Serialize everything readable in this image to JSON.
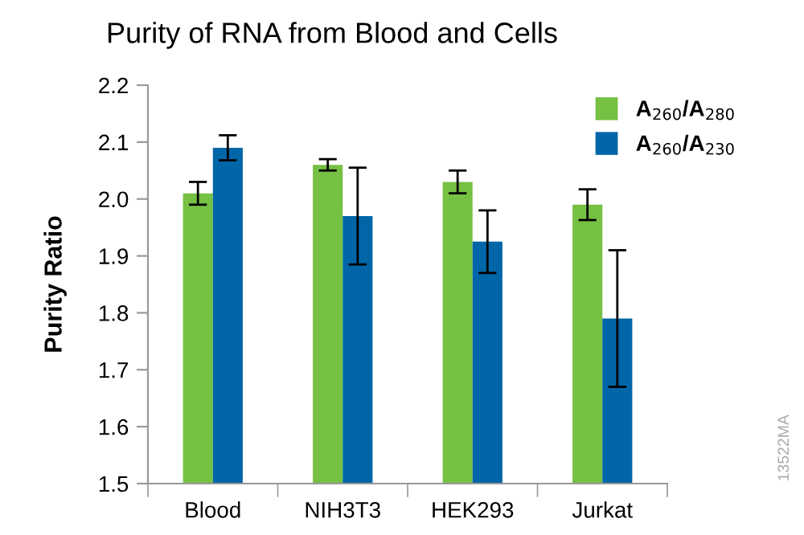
{
  "chart_data": {
    "type": "bar",
    "title": "Purity of RNA from Blood and Cells",
    "ylabel": "Purity Ratio",
    "categories": [
      "Blood",
      "NIH3T3",
      "HEK293",
      "Jurkat"
    ],
    "series": [
      {
        "name": "A$_{260}$/A$_{280}$",
        "color": "#76c043",
        "values": [
          2.01,
          2.06,
          2.03,
          1.99
        ],
        "errors": [
          0.02,
          0.01,
          0.02,
          0.027
        ]
      },
      {
        "name": "A$_{260}$/A$_{230}$",
        "color": "#0066a8",
        "values": [
          2.09,
          1.97,
          1.925,
          1.79
        ],
        "errors": [
          0.022,
          0.085,
          0.055,
          0.12
        ]
      }
    ],
    "ylim": [
      1.5,
      2.2
    ],
    "yticks": [
      1.5,
      1.6,
      1.7,
      1.8,
      1.9,
      {
        "value": 2.0,
        "label": "2.0"
      },
      2.1,
      2.2
    ],
    "grid": false,
    "legend": "top right",
    "annotations": [
      "13522MA"
    ]
  }
}
